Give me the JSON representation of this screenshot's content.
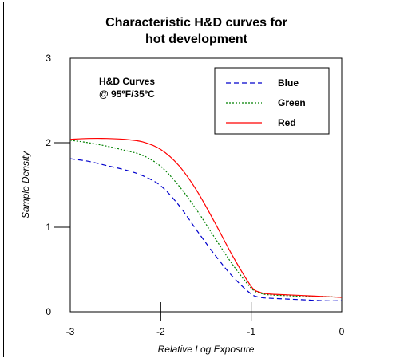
{
  "chart_data": {
    "type": "line",
    "title_lines": [
      "Characteristic H&D curves for",
      "hot development"
    ],
    "xlabel": "Relative Log Exposure",
    "ylabel": "Sample Density",
    "xlim": [
      -3,
      0
    ],
    "ylim": [
      0,
      3
    ],
    "x_ticks": [
      -3,
      -2,
      -1,
      0
    ],
    "x_tick_labels": [
      "-3",
      "-2",
      "-1",
      "0"
    ],
    "y_ticks": [
      0,
      1,
      2,
      3
    ],
    "y_tick_labels": [
      "0",
      "1",
      "2",
      "3"
    ],
    "grid": false,
    "legend_position": "top-right",
    "annotation_lines": [
      "H&D Curves",
      "@ 95ºF/35ºC"
    ],
    "series": [
      {
        "name": "Blue",
        "color": "#0000cc",
        "dash": "dashed",
        "x": [
          -3.0,
          -2.8,
          -2.6,
          -2.4,
          -2.2,
          -2.0,
          -1.8,
          -1.6,
          -1.4,
          -1.2,
          -1.0,
          -0.9,
          -0.8,
          -0.6,
          -0.4,
          -0.2,
          0.0
        ],
        "y": [
          1.81,
          1.78,
          1.73,
          1.68,
          1.61,
          1.49,
          1.26,
          0.96,
          0.67,
          0.41,
          0.21,
          0.17,
          0.16,
          0.15,
          0.14,
          0.13,
          0.13
        ]
      },
      {
        "name": "Green",
        "color": "#008000",
        "dash": "dotted",
        "x": [
          -3.0,
          -2.8,
          -2.6,
          -2.4,
          -2.2,
          -2.0,
          -1.8,
          -1.6,
          -1.4,
          -1.2,
          -1.0,
          -0.9,
          -0.8,
          -0.6,
          -0.4,
          -0.2,
          0.0
        ],
        "y": [
          2.03,
          2.0,
          1.96,
          1.91,
          1.85,
          1.72,
          1.49,
          1.2,
          0.87,
          0.55,
          0.28,
          0.22,
          0.2,
          0.19,
          0.18,
          0.18,
          0.17
        ]
      },
      {
        "name": "Red",
        "color": "#ff0000",
        "dash": "solid",
        "x": [
          -3.0,
          -2.8,
          -2.6,
          -2.4,
          -2.2,
          -2.0,
          -1.8,
          -1.6,
          -1.4,
          -1.2,
          -1.0,
          -0.9,
          -0.8,
          -0.6,
          -0.4,
          -0.2,
          0.0
        ],
        "y": [
          2.04,
          2.05,
          2.05,
          2.04,
          2.01,
          1.92,
          1.73,
          1.43,
          1.05,
          0.65,
          0.3,
          0.23,
          0.21,
          0.2,
          0.19,
          0.18,
          0.17
        ]
      }
    ]
  }
}
